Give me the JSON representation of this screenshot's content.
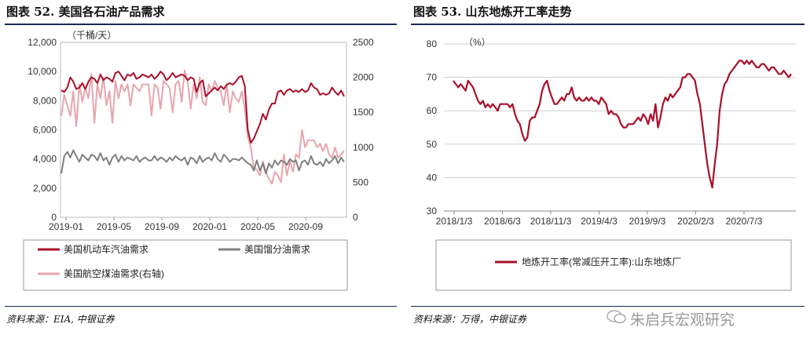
{
  "left": {
    "title": "图表 52. 美国各石油产品需求",
    "source": "资料来源：EIA, 中银证券",
    "unit": "（千桶/天）",
    "chart_data": {
      "type": "line",
      "x_ticks": [
        "2019-01",
        "2019-05",
        "2019-09",
        "2020-01",
        "2020-05",
        "2020-09"
      ],
      "y_left_ticks": [
        "0",
        "2,000",
        "4,000",
        "6,000",
        "8,000",
        "10,000",
        "12,000"
      ],
      "y_right_ticks": [
        "0",
        "500",
        "1000",
        "1500",
        "2000",
        "2500"
      ],
      "ylim_left": [
        0,
        12000
      ],
      "ylim_right": [
        0,
        2500
      ],
      "series": [
        {
          "name": "美国机动车汽油需求",
          "axis": "left",
          "color": "#a8102a",
          "values": [
            8700,
            8600,
            8900,
            9600,
            9300,
            8800,
            8900,
            9200,
            8800,
            9300,
            9600,
            9500,
            9200,
            9800,
            9400,
            9600,
            9500,
            9300,
            9900,
            10000,
            9700,
            9400,
            9800,
            9700,
            9900,
            9500,
            9600,
            9800,
            9700,
            9600,
            9800,
            9500,
            9700,
            10000,
            9800,
            9400,
            9600,
            9900,
            9600,
            9700,
            9800,
            9700,
            9400,
            9600,
            9500,
            8600,
            9200,
            9400,
            8300,
            8500,
            8700,
            8900,
            8700,
            9000,
            8800,
            9100,
            9200,
            9100,
            9300,
            9600,
            9700,
            9000,
            6000,
            5100,
            5400,
            5900,
            6400,
            7100,
            6700,
            7400,
            7800,
            7800,
            8600,
            8700,
            8400,
            8700,
            8800,
            8600,
            8700,
            8600,
            8800,
            8600,
            8700,
            9200,
            8900,
            8800,
            8400,
            8500,
            8400,
            8500,
            8900,
            8600,
            8400,
            8700,
            8300
          ]
        },
        {
          "name": "美国馏分油需求",
          "axis": "left",
          "color": "#808080",
          "values": [
            3000,
            4200,
            4500,
            4100,
            4600,
            4200,
            3800,
            4300,
            4100,
            3900,
            4300,
            4200,
            3900,
            4400,
            3900,
            4100,
            3600,
            4100,
            4300,
            3800,
            4200,
            3900,
            4100,
            4000,
            3900,
            4200,
            3800,
            4000,
            4100,
            3900,
            3900,
            4200,
            3900,
            4100,
            4000,
            3800,
            4100,
            3900,
            4200,
            4000,
            3900,
            4100,
            3600,
            4100,
            4000,
            3700,
            4200,
            3800,
            4000,
            4100,
            3900,
            4400,
            4000,
            3800,
            4300,
            4100,
            3800,
            4000,
            4000,
            3900,
            4100,
            3900,
            3700,
            3600,
            3200,
            3900,
            3200,
            3700,
            3000,
            3700,
            3400,
            3900,
            3600,
            3900,
            3800,
            3600,
            4000,
            3800,
            3900,
            3200,
            3800,
            3900,
            3600,
            4200,
            3700,
            3600,
            3800,
            3500,
            4000,
            3700,
            3900,
            4200,
            3700,
            4100,
            3800
          ]
        },
        {
          "name": "美国航空煤油需求(右轴)",
          "axis": "right",
          "color": "#e8a5ad",
          "values": [
            1450,
            1750,
            1600,
            1450,
            1800,
            1300,
            1900,
            1650,
            1850,
            1700,
            2050,
            1350,
            1900,
            1700,
            2000,
            1600,
            1800,
            1350,
            1950,
            1700,
            1900,
            1800,
            1900,
            1600,
            1900,
            1850,
            1800,
            1900,
            1900,
            1900,
            1450,
            1900,
            1850,
            1550,
            1950,
            1900,
            1850,
            1500,
            1900,
            1950,
            1650,
            2100,
            1950,
            1550,
            1900,
            1700,
            2000,
            1650,
            1600,
            1900,
            1800,
            1950,
            1850,
            1800,
            1600,
            1900,
            1500,
            1800,
            1700,
            1650,
            1800,
            1550,
            1150,
            1000,
            700,
            680,
            600,
            800,
            650,
            550,
            480,
            650,
            600,
            500,
            900,
            600,
            800,
            650,
            900,
            850,
            1250,
            1000,
            1100,
            1100,
            1100,
            1000,
            1050,
            950,
            1050,
            900,
            850,
            1000,
            850,
            900,
            950
          ]
        }
      ]
    }
  },
  "right": {
    "title": "图表 53. 山东地炼开工率走势",
    "source": "资料来源：万得，中银证券",
    "unit": "（%）",
    "chart_data": {
      "type": "line",
      "x_ticks": [
        "2018/1/3",
        "2018/6/3",
        "2018/11/3",
        "2019/4/3",
        "2019/9/3",
        "2020/2/3",
        "2020/7/3"
      ],
      "y_ticks": [
        "30",
        "40",
        "50",
        "60",
        "70",
        "80"
      ],
      "ylim": [
        30,
        80
      ],
      "series": [
        {
          "name": "地炼开工率(常减压开工率):山东地炼厂",
          "color": "#a8102a",
          "values": [
            69,
            68,
            67,
            68,
            67,
            66,
            69,
            68,
            67,
            65,
            63,
            62,
            63,
            61,
            62,
            61,
            62,
            61,
            60,
            62,
            62,
            62,
            62,
            61,
            62,
            59,
            57,
            56,
            53,
            51,
            52,
            57,
            58,
            58,
            60,
            62,
            66,
            68,
            69,
            66,
            64,
            62,
            62,
            63,
            64,
            63,
            65,
            65,
            67,
            64,
            63,
            64,
            63,
            63,
            64,
            63,
            64,
            63,
            63,
            62,
            64,
            63,
            62,
            59,
            60,
            59,
            59,
            58,
            56,
            55,
            55,
            56,
            56,
            56,
            57,
            58,
            57,
            59,
            58,
            56,
            59,
            57,
            62,
            55,
            58,
            62,
            64,
            63,
            65,
            64,
            65,
            66,
            67,
            70,
            70,
            71,
            71,
            70,
            69,
            65,
            62,
            56,
            50,
            44,
            40,
            37,
            44,
            50,
            60,
            65,
            68,
            69,
            71,
            72,
            73,
            74,
            75,
            75,
            74,
            75,
            74,
            75,
            74,
            73,
            73,
            74,
            74,
            73,
            72,
            73,
            73,
            72,
            71,
            71,
            72,
            71,
            70,
            71
          ]
        }
      ]
    }
  },
  "watermark": "朱启兵宏观研究"
}
